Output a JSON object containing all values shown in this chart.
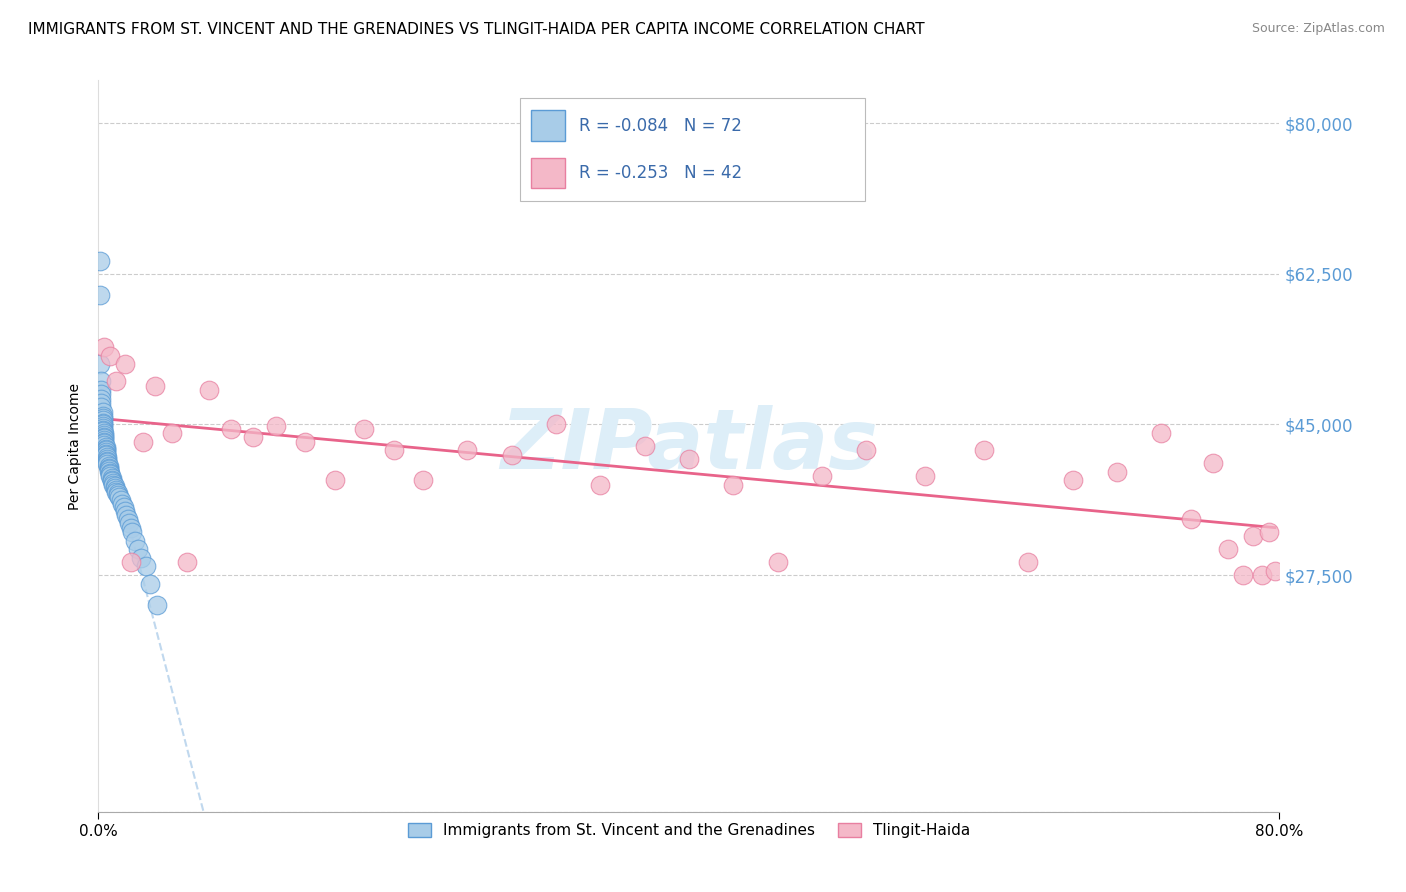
{
  "title": "IMMIGRANTS FROM ST. VINCENT AND THE GRENADINES VS TLINGIT-HAIDA PER CAPITA INCOME CORRELATION CHART",
  "source": "Source: ZipAtlas.com",
  "ylabel": "Per Capita Income",
  "xlim": [
    0.0,
    0.8
  ],
  "ylim": [
    0,
    85000
  ],
  "yticks": [
    0,
    27500,
    45000,
    62500,
    80000
  ],
  "ytick_labels": [
    "",
    "$27,500",
    "$45,000",
    "$62,500",
    "$80,000"
  ],
  "xtick_labels": [
    "0.0%",
    "80.0%"
  ],
  "legend1_label": "Immigrants from St. Vincent and the Grenadines",
  "legend2_label": "Tlingit-Haida",
  "R1": -0.084,
  "N1": 72,
  "R2": -0.253,
  "N2": 42,
  "blue_color": "#a8cce8",
  "pink_color": "#f4b8c8",
  "blue_edge_color": "#5b9bd5",
  "pink_edge_color": "#e87fa0",
  "blue_line_color": "#5b9bd5",
  "pink_line_color": "#e8638a",
  "blue_dash_color": "#c0d8ee",
  "watermark_text_color": "#ddeef8",
  "title_fontsize": 11,
  "blue_x": [
    0.001,
    0.001,
    0.001,
    0.002,
    0.002,
    0.002,
    0.002,
    0.002,
    0.002,
    0.003,
    0.003,
    0.003,
    0.003,
    0.003,
    0.003,
    0.003,
    0.003,
    0.003,
    0.003,
    0.004,
    0.004,
    0.004,
    0.004,
    0.004,
    0.004,
    0.004,
    0.004,
    0.005,
    0.005,
    0.005,
    0.005,
    0.005,
    0.005,
    0.006,
    0.006,
    0.006,
    0.006,
    0.006,
    0.007,
    0.007,
    0.007,
    0.007,
    0.008,
    0.008,
    0.008,
    0.009,
    0.009,
    0.009,
    0.01,
    0.01,
    0.011,
    0.011,
    0.012,
    0.012,
    0.013,
    0.013,
    0.014,
    0.015,
    0.016,
    0.017,
    0.018,
    0.019,
    0.02,
    0.021,
    0.022,
    0.023,
    0.025,
    0.027,
    0.029,
    0.032,
    0.035,
    0.04
  ],
  "blue_y": [
    64000,
    60000,
    52000,
    50000,
    49000,
    48500,
    48000,
    47500,
    47000,
    46500,
    46000,
    45800,
    45500,
    45200,
    45000,
    44800,
    44600,
    44400,
    44200,
    44000,
    43800,
    43600,
    43400,
    43200,
    43000,
    42800,
    42600,
    42400,
    42200,
    42000,
    41800,
    41600,
    41400,
    41200,
    41000,
    40800,
    40600,
    40400,
    40200,
    40000,
    39800,
    39600,
    39400,
    39200,
    39000,
    38800,
    38600,
    38400,
    38200,
    38000,
    37800,
    37600,
    37400,
    37200,
    37000,
    36800,
    36600,
    36200,
    35800,
    35400,
    35000,
    34500,
    34000,
    33500,
    33000,
    32500,
    31500,
    30500,
    29500,
    28500,
    26500,
    24000
  ],
  "pink_x": [
    0.004,
    0.008,
    0.012,
    0.018,
    0.022,
    0.03,
    0.038,
    0.05,
    0.06,
    0.075,
    0.09,
    0.105,
    0.12,
    0.14,
    0.16,
    0.18,
    0.2,
    0.22,
    0.25,
    0.28,
    0.31,
    0.34,
    0.37,
    0.4,
    0.43,
    0.46,
    0.49,
    0.52,
    0.56,
    0.6,
    0.63,
    0.66,
    0.69,
    0.72,
    0.74,
    0.755,
    0.765,
    0.775,
    0.782,
    0.788,
    0.793,
    0.797
  ],
  "pink_y": [
    54000,
    53000,
    50000,
    52000,
    29000,
    43000,
    49500,
    44000,
    29000,
    49000,
    44500,
    43500,
    44800,
    43000,
    38500,
    44500,
    42000,
    38500,
    42000,
    41500,
    45000,
    38000,
    42500,
    41000,
    38000,
    29000,
    39000,
    42000,
    39000,
    42000,
    29000,
    38500,
    39500,
    44000,
    34000,
    40500,
    30500,
    27500,
    32000,
    27500,
    32500,
    28000
  ]
}
